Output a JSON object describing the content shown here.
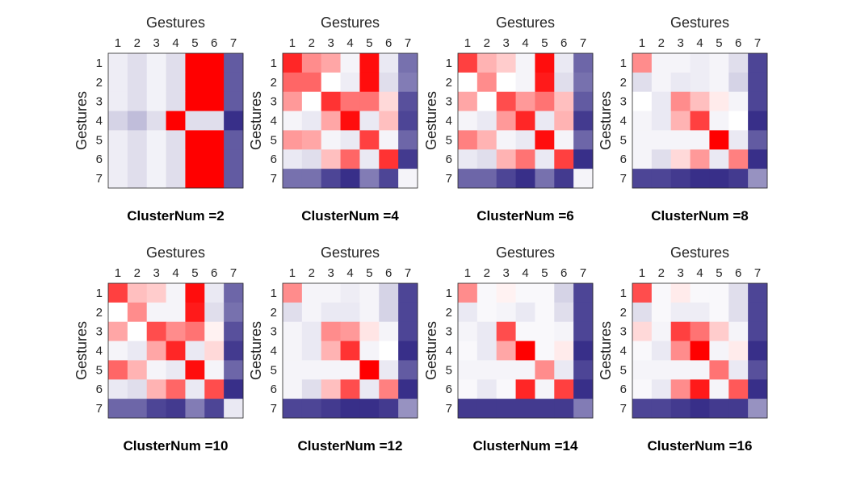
{
  "colors": {
    "low": "#2e2483",
    "mid": "#ffffff",
    "high": "#ff0000",
    "frame": "#262626",
    "background": "#ffffff"
  },
  "chart_data": [
    {
      "type": "heatmap",
      "title": "ClusterNum =2",
      "xlabel": "Gestures",
      "ylabel": "Gestures",
      "x_categories": [
        "1",
        "2",
        "3",
        "4",
        "5",
        "6",
        "7"
      ],
      "y_categories": [
        "1",
        "2",
        "3",
        "4",
        "5",
        "6",
        "7"
      ],
      "value_range": [
        -1,
        1
      ],
      "values": [
        [
          -0.08,
          -0.15,
          -0.06,
          -0.15,
          1,
          1,
          -0.75
        ],
        [
          -0.08,
          -0.15,
          -0.06,
          -0.15,
          1,
          1,
          -0.75
        ],
        [
          -0.08,
          -0.15,
          -0.06,
          -0.15,
          1,
          1,
          -0.75
        ],
        [
          -0.2,
          -0.3,
          -0.15,
          1,
          -0.15,
          -0.15,
          -0.95
        ],
        [
          -0.08,
          -0.15,
          -0.06,
          -0.15,
          1,
          1,
          -0.75
        ],
        [
          -0.08,
          -0.15,
          -0.06,
          -0.15,
          1,
          1,
          -0.75
        ],
        [
          -0.08,
          -0.15,
          -0.06,
          -0.15,
          1,
          1,
          -0.75
        ]
      ]
    },
    {
      "type": "heatmap",
      "title": "ClusterNum =4",
      "xlabel": "Gestures",
      "ylabel": "Gestures",
      "x_categories": [
        "1",
        "2",
        "3",
        "4",
        "5",
        "6",
        "7"
      ],
      "y_categories": [
        "1",
        "2",
        "3",
        "4",
        "5",
        "6",
        "7"
      ],
      "value_range": [
        -1,
        1
      ],
      "values": [
        [
          0.85,
          0.45,
          0.35,
          -0.05,
          0.95,
          -0.1,
          -0.65
        ],
        [
          0.6,
          0.6,
          0.0,
          -0.08,
          0.95,
          -0.15,
          -0.6
        ],
        [
          0.4,
          0.0,
          0.8,
          0.55,
          0.55,
          0.15,
          -0.8
        ],
        [
          -0.05,
          -0.1,
          0.35,
          0.95,
          -0.1,
          0.25,
          -0.85
        ],
        [
          0.4,
          0.35,
          -0.05,
          -0.1,
          0.75,
          -0.05,
          -0.7
        ],
        [
          -0.1,
          -0.15,
          0.25,
          0.6,
          -0.1,
          0.8,
          -0.9
        ],
        [
          -0.65,
          -0.65,
          -0.85,
          -0.95,
          -0.6,
          -0.85,
          -0.05
        ]
      ]
    },
    {
      "type": "heatmap",
      "title": "ClusterNum =6",
      "xlabel": "Gestures",
      "ylabel": "Gestures",
      "x_categories": [
        "1",
        "2",
        "3",
        "4",
        "5",
        "6",
        "7"
      ],
      "y_categories": [
        "1",
        "2",
        "3",
        "4",
        "5",
        "6",
        "7"
      ],
      "value_range": [
        -1,
        1
      ],
      "values": [
        [
          0.75,
          0.3,
          0.2,
          -0.05,
          0.95,
          -0.1,
          -0.7
        ],
        [
          0.0,
          0.45,
          0.0,
          -0.05,
          0.9,
          -0.15,
          -0.65
        ],
        [
          0.35,
          0.0,
          0.7,
          0.4,
          0.55,
          0.25,
          -0.75
        ],
        [
          -0.05,
          -0.1,
          0.4,
          0.85,
          -0.1,
          0.3,
          -0.9
        ],
        [
          0.5,
          0.3,
          -0.05,
          -0.1,
          0.95,
          -0.05,
          -0.7
        ],
        [
          -0.1,
          -0.15,
          0.3,
          0.55,
          -0.1,
          0.75,
          -0.95
        ],
        [
          -0.7,
          -0.7,
          -0.85,
          -0.95,
          -0.65,
          -0.9,
          -0.05
        ]
      ]
    },
    {
      "type": "heatmap",
      "title": "ClusterNum =8",
      "xlabel": "Gestures",
      "ylabel": "Gestures",
      "x_categories": [
        "1",
        "2",
        "3",
        "4",
        "5",
        "6",
        "7"
      ],
      "y_categories": [
        "1",
        "2",
        "3",
        "4",
        "5",
        "6",
        "7"
      ],
      "value_range": [
        -1,
        1
      ],
      "values": [
        [
          0.45,
          -0.05,
          -0.05,
          -0.08,
          -0.05,
          -0.15,
          -0.85
        ],
        [
          -0.15,
          -0.05,
          -0.1,
          -0.08,
          -0.05,
          -0.2,
          -0.85
        ],
        [
          0.0,
          -0.1,
          0.45,
          0.25,
          0.08,
          -0.05,
          -0.85
        ],
        [
          -0.05,
          -0.1,
          0.3,
          0.75,
          -0.05,
          0.0,
          -0.95
        ],
        [
          -0.05,
          -0.05,
          -0.05,
          -0.05,
          1,
          -0.1,
          -0.75
        ],
        [
          -0.05,
          -0.15,
          0.15,
          0.4,
          -0.1,
          0.5,
          -0.95
        ],
        [
          -0.85,
          -0.85,
          -0.9,
          -0.95,
          -0.95,
          -0.9,
          -0.5
        ]
      ]
    },
    {
      "type": "heatmap",
      "title": "ClusterNum =10",
      "xlabel": "Gestures",
      "ylabel": "Gestures",
      "x_categories": [
        "1",
        "2",
        "3",
        "4",
        "5",
        "6",
        "7"
      ],
      "y_categories": [
        "1",
        "2",
        "3",
        "4",
        "5",
        "6",
        "7"
      ],
      "value_range": [
        -1,
        1
      ],
      "values": [
        [
          0.75,
          0.25,
          0.2,
          -0.05,
          0.95,
          -0.1,
          -0.7
        ],
        [
          0.0,
          0.45,
          -0.05,
          -0.05,
          0.9,
          -0.15,
          -0.65
        ],
        [
          0.35,
          0.0,
          0.7,
          0.45,
          0.55,
          0.05,
          -0.8
        ],
        [
          -0.05,
          -0.1,
          0.35,
          0.85,
          -0.1,
          0.15,
          -0.9
        ],
        [
          0.6,
          0.3,
          -0.05,
          -0.1,
          0.95,
          -0.05,
          -0.7
        ],
        [
          -0.1,
          -0.15,
          0.3,
          0.6,
          -0.1,
          0.7,
          -0.95
        ],
        [
          -0.7,
          -0.7,
          -0.85,
          -0.9,
          -0.6,
          -0.85,
          -0.1
        ]
      ]
    },
    {
      "type": "heatmap",
      "title": "ClusterNum =12",
      "xlabel": "Gestures",
      "ylabel": "Gestures",
      "x_categories": [
        "1",
        "2",
        "3",
        "4",
        "5",
        "6",
        "7"
      ],
      "y_categories": [
        "1",
        "2",
        "3",
        "4",
        "5",
        "6",
        "7"
      ],
      "value_range": [
        -1,
        1
      ],
      "values": [
        [
          0.45,
          -0.05,
          -0.05,
          -0.08,
          -0.05,
          -0.2,
          -0.85
        ],
        [
          -0.15,
          -0.05,
          -0.1,
          -0.1,
          -0.05,
          -0.2,
          -0.85
        ],
        [
          -0.05,
          -0.1,
          0.45,
          0.4,
          0.1,
          -0.05,
          -0.85
        ],
        [
          -0.05,
          -0.1,
          0.3,
          0.8,
          -0.05,
          0.0,
          -0.95
        ],
        [
          -0.05,
          -0.05,
          -0.05,
          -0.05,
          1,
          -0.1,
          -0.75
        ],
        [
          -0.05,
          -0.15,
          0.25,
          0.7,
          -0.1,
          0.5,
          -0.95
        ],
        [
          -0.85,
          -0.85,
          -0.9,
          -0.95,
          -0.95,
          -0.9,
          -0.5
        ]
      ]
    },
    {
      "type": "heatmap",
      "title": "ClusterNum =14",
      "xlabel": "Gestures",
      "ylabel": "Gestures",
      "x_categories": [
        "1",
        "2",
        "3",
        "4",
        "5",
        "6",
        "7"
      ],
      "y_categories": [
        "1",
        "2",
        "3",
        "4",
        "5",
        "6",
        "7"
      ],
      "value_range": [
        -1,
        1
      ],
      "values": [
        [
          0.45,
          -0.03,
          0.05,
          -0.03,
          -0.03,
          -0.2,
          -0.85
        ],
        [
          -0.1,
          -0.03,
          -0.05,
          -0.1,
          -0.03,
          -0.15,
          -0.85
        ],
        [
          -0.05,
          -0.1,
          0.7,
          -0.03,
          -0.03,
          -0.05,
          -0.85
        ],
        [
          -0.03,
          -0.1,
          0.35,
          1,
          -0.03,
          0.08,
          -0.95
        ],
        [
          -0.05,
          -0.05,
          -0.05,
          -0.05,
          0.45,
          -0.1,
          -0.85
        ],
        [
          -0.03,
          -0.1,
          -0.03,
          0.85,
          -0.05,
          0.75,
          -0.95
        ],
        [
          -0.9,
          -0.9,
          -0.9,
          -0.9,
          -0.9,
          -0.9,
          -0.6
        ]
      ]
    },
    {
      "type": "heatmap",
      "title": "ClusterNum =16",
      "xlabel": "Gestures",
      "ylabel": "Gestures",
      "x_categories": [
        "1",
        "2",
        "3",
        "4",
        "5",
        "6",
        "7"
      ],
      "y_categories": [
        "1",
        "2",
        "3",
        "4",
        "5",
        "6",
        "7"
      ],
      "value_range": [
        -1,
        1
      ],
      "values": [
        [
          0.7,
          -0.03,
          0.08,
          -0.03,
          -0.03,
          -0.15,
          -0.85
        ],
        [
          -0.15,
          -0.03,
          -0.08,
          -0.08,
          -0.03,
          -0.15,
          -0.85
        ],
        [
          0.15,
          -0.05,
          0.75,
          0.55,
          0.2,
          -0.05,
          -0.85
        ],
        [
          -0.03,
          -0.1,
          0.45,
          1,
          -0.05,
          0.08,
          -0.95
        ],
        [
          -0.05,
          -0.05,
          -0.05,
          -0.05,
          0.55,
          -0.1,
          -0.8
        ],
        [
          -0.03,
          -0.1,
          0.45,
          0.9,
          -0.05,
          0.65,
          -0.95
        ],
        [
          -0.85,
          -0.85,
          -0.9,
          -0.95,
          -0.9,
          -0.9,
          -0.5
        ]
      ]
    }
  ]
}
